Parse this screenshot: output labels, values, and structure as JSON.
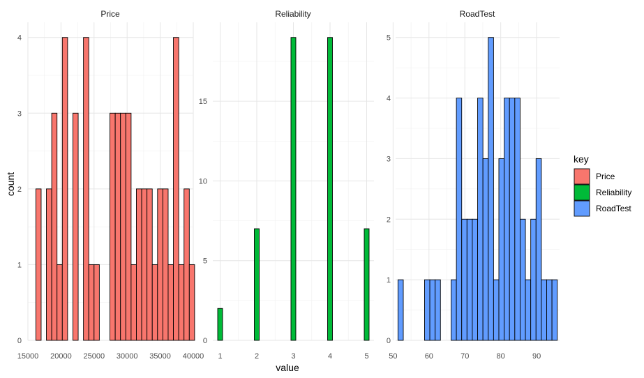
{
  "chart_data": {
    "type": "bar",
    "subtype": "faceted-histogram",
    "xlabel": "value",
    "ylabel": "count",
    "facet_scales": "free",
    "grid": true,
    "legend": {
      "title": "key",
      "position": "right",
      "items": [
        {
          "label": "Price",
          "color": "#F8766D"
        },
        {
          "label": "Reliability",
          "color": "#00BA38"
        },
        {
          "label": "RoadTest",
          "color": "#619CFF"
        }
      ]
    },
    "panels": [
      {
        "title": "Price",
        "color": "#F8766D",
        "xlim": [
          15000,
          40000
        ],
        "ylim": [
          0,
          4
        ],
        "xticks": [
          15000,
          20000,
          25000,
          30000,
          35000,
          40000
        ],
        "yticks": [
          0,
          1,
          2,
          3,
          4
        ],
        "bin_width": 800,
        "bin_centers": [
          16600,
          17400,
          18200,
          19000,
          19800,
          20600,
          21400,
          22200,
          23000,
          23800,
          24600,
          25400,
          26200,
          27000,
          27800,
          28600,
          29400,
          30200,
          31000,
          31800,
          32600,
          33400,
          34200,
          35000,
          35800,
          36600,
          37400,
          38200,
          39000,
          39800
        ],
        "counts": [
          2,
          0,
          2,
          3,
          1,
          4,
          0,
          3,
          0,
          4,
          1,
          1,
          0,
          0,
          3,
          3,
          3,
          3,
          1,
          2,
          2,
          2,
          1,
          2,
          2,
          1,
          4,
          1,
          2,
          1
        ]
      },
      {
        "title": "Reliability",
        "color": "#00BA38",
        "xlim": [
          1,
          5
        ],
        "ylim": [
          0,
          19
        ],
        "xticks": [
          1,
          2,
          3,
          4,
          5
        ],
        "yticks": [
          0,
          5,
          10,
          15
        ],
        "bin_width": 0.133,
        "bin_centers": [
          1,
          2,
          3,
          4,
          5
        ],
        "counts": [
          2,
          7,
          19,
          19,
          7
        ]
      },
      {
        "title": "RoadTest",
        "color": "#619CFF",
        "xlim": [
          50,
          95
        ],
        "ylim": [
          0,
          5
        ],
        "xticks": [
          50,
          60,
          70,
          80,
          90
        ],
        "yticks": [
          0,
          1,
          2,
          3,
          4,
          5
        ],
        "bin_width": 1.48,
        "bin_centers": [
          52.1,
          53.58,
          55.06,
          56.54,
          58.02,
          59.5,
          60.98,
          62.46,
          63.94,
          65.42,
          66.9,
          68.38,
          69.86,
          71.34,
          72.82,
          74.3,
          75.78,
          77.26,
          78.74,
          80.22,
          81.7,
          83.18,
          84.66,
          86.14,
          87.62,
          89.1,
          90.58,
          92.06,
          93.54,
          95.02
        ],
        "counts": [
          1,
          0,
          0,
          0,
          0,
          1,
          1,
          1,
          0,
          0,
          1,
          4,
          2,
          2,
          2,
          4,
          3,
          5,
          1,
          3,
          4,
          4,
          4,
          2,
          1,
          2,
          3,
          1,
          1,
          1
        ]
      }
    ]
  }
}
